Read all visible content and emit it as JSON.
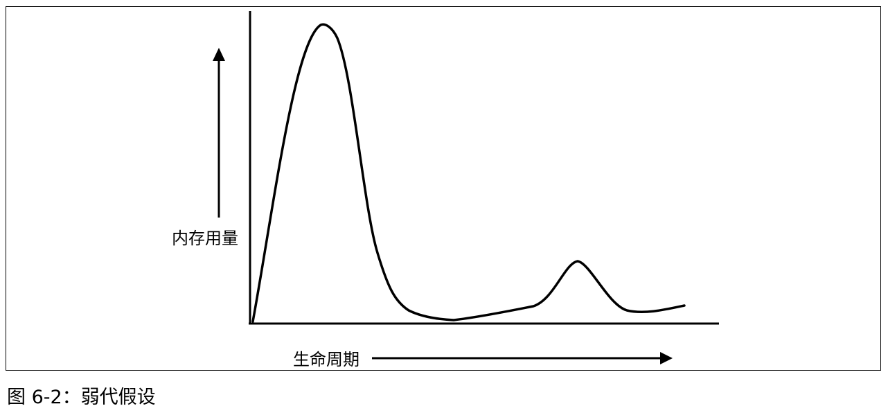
{
  "diagram": {
    "y_label": "内存用量",
    "x_label": "生命周期",
    "curve": "memory usage vs object lifetime: sharp early peak, long low plateau, small secondary peak"
  },
  "caption": {
    "text": "图 6-2：弱代假设"
  },
  "colors": {
    "line": "#000000",
    "background": "#ffffff"
  }
}
